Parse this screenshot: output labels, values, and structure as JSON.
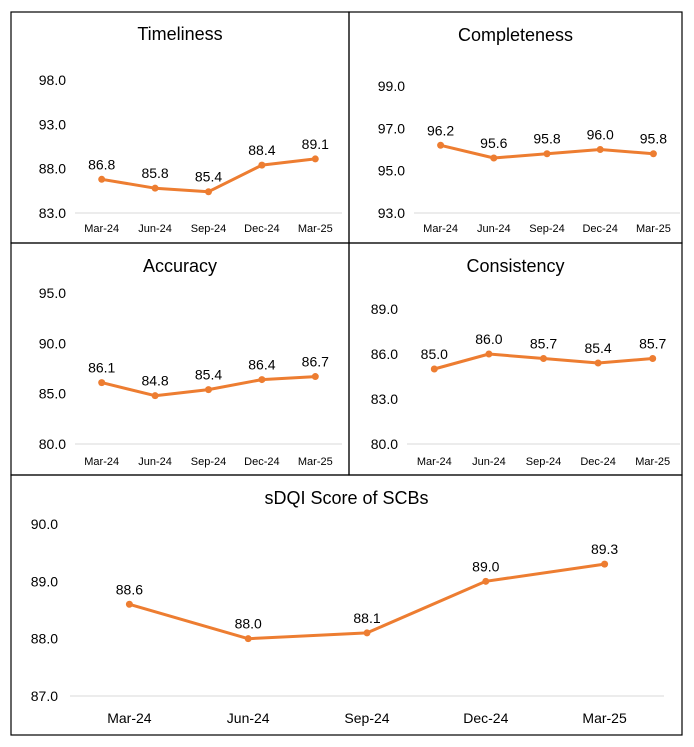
{
  "line_color": "#ED7D31",
  "chart_data": [
    {
      "type": "line",
      "title": "Timeliness",
      "categories": [
        "Mar-24",
        "Jun-24",
        "Sep-24",
        "Dec-24",
        "Mar-25"
      ],
      "values": [
        86.8,
        85.8,
        85.4,
        88.4,
        89.1
      ],
      "labels": [
        "86.8",
        "85.8",
        "85.4",
        "88.4",
        "89.1"
      ],
      "ylim": [
        83.0,
        98.0
      ],
      "yticks": [
        98.0,
        93.0,
        88.0,
        83.0
      ],
      "ytick_labels": [
        "98.0",
        "93.0",
        "88.0",
        "83.0"
      ]
    },
    {
      "type": "line",
      "title": "Completeness",
      "categories": [
        "Mar-24",
        "Jun-24",
        "Sep-24",
        "Dec-24",
        "Mar-25"
      ],
      "values": [
        96.2,
        95.6,
        95.8,
        96.0,
        95.8
      ],
      "labels": [
        "96.2",
        "95.6",
        "95.8",
        "96.0",
        "95.8"
      ],
      "ylim": [
        93.0,
        99.0
      ],
      "yticks": [
        99.0,
        97.0,
        95.0,
        93.0
      ],
      "ytick_labels": [
        "99.0",
        "97.0",
        "95.0",
        "93.0"
      ]
    },
    {
      "type": "line",
      "title": "Accuracy",
      "categories": [
        "Mar-24",
        "Jun-24",
        "Sep-24",
        "Dec-24",
        "Mar-25"
      ],
      "values": [
        86.1,
        84.8,
        85.4,
        86.4,
        86.7
      ],
      "labels": [
        "86.1",
        "84.8",
        "85.4",
        "86.4",
        "86.7"
      ],
      "ylim": [
        80.0,
        95.0
      ],
      "yticks": [
        95.0,
        90.0,
        85.0,
        80.0
      ],
      "ytick_labels": [
        "95.0",
        "90.0",
        "85.0",
        "80.0"
      ]
    },
    {
      "type": "line",
      "title": "Consistency",
      "categories": [
        "Mar-24",
        "Jun-24",
        "Sep-24",
        "Dec-24",
        "Mar-25"
      ],
      "values": [
        85.0,
        86.0,
        85.7,
        85.4,
        85.7
      ],
      "labels": [
        "85.0",
        "86.0",
        "85.7",
        "85.4",
        "85.7"
      ],
      "ylim": [
        80.0,
        89.0
      ],
      "yticks": [
        89.0,
        86.0,
        83.0,
        80.0
      ],
      "ytick_labels": [
        "89.0",
        "86.0",
        "83.0",
        "80.0"
      ]
    },
    {
      "type": "line",
      "title": "sDQI Score of SCBs",
      "categories": [
        "Mar-24",
        "Jun-24",
        "Sep-24",
        "Dec-24",
        "Mar-25"
      ],
      "values": [
        88.6,
        88.0,
        88.1,
        89.0,
        89.3
      ],
      "labels": [
        "88.6",
        "88.0",
        "88.1",
        "89.0",
        "89.3"
      ],
      "ylim": [
        87.0,
        90.0
      ],
      "yticks": [
        90.0,
        89.0,
        88.0,
        87.0
      ],
      "ytick_labels": [
        "90.0",
        "89.0",
        "88.0",
        "87.0"
      ]
    }
  ]
}
